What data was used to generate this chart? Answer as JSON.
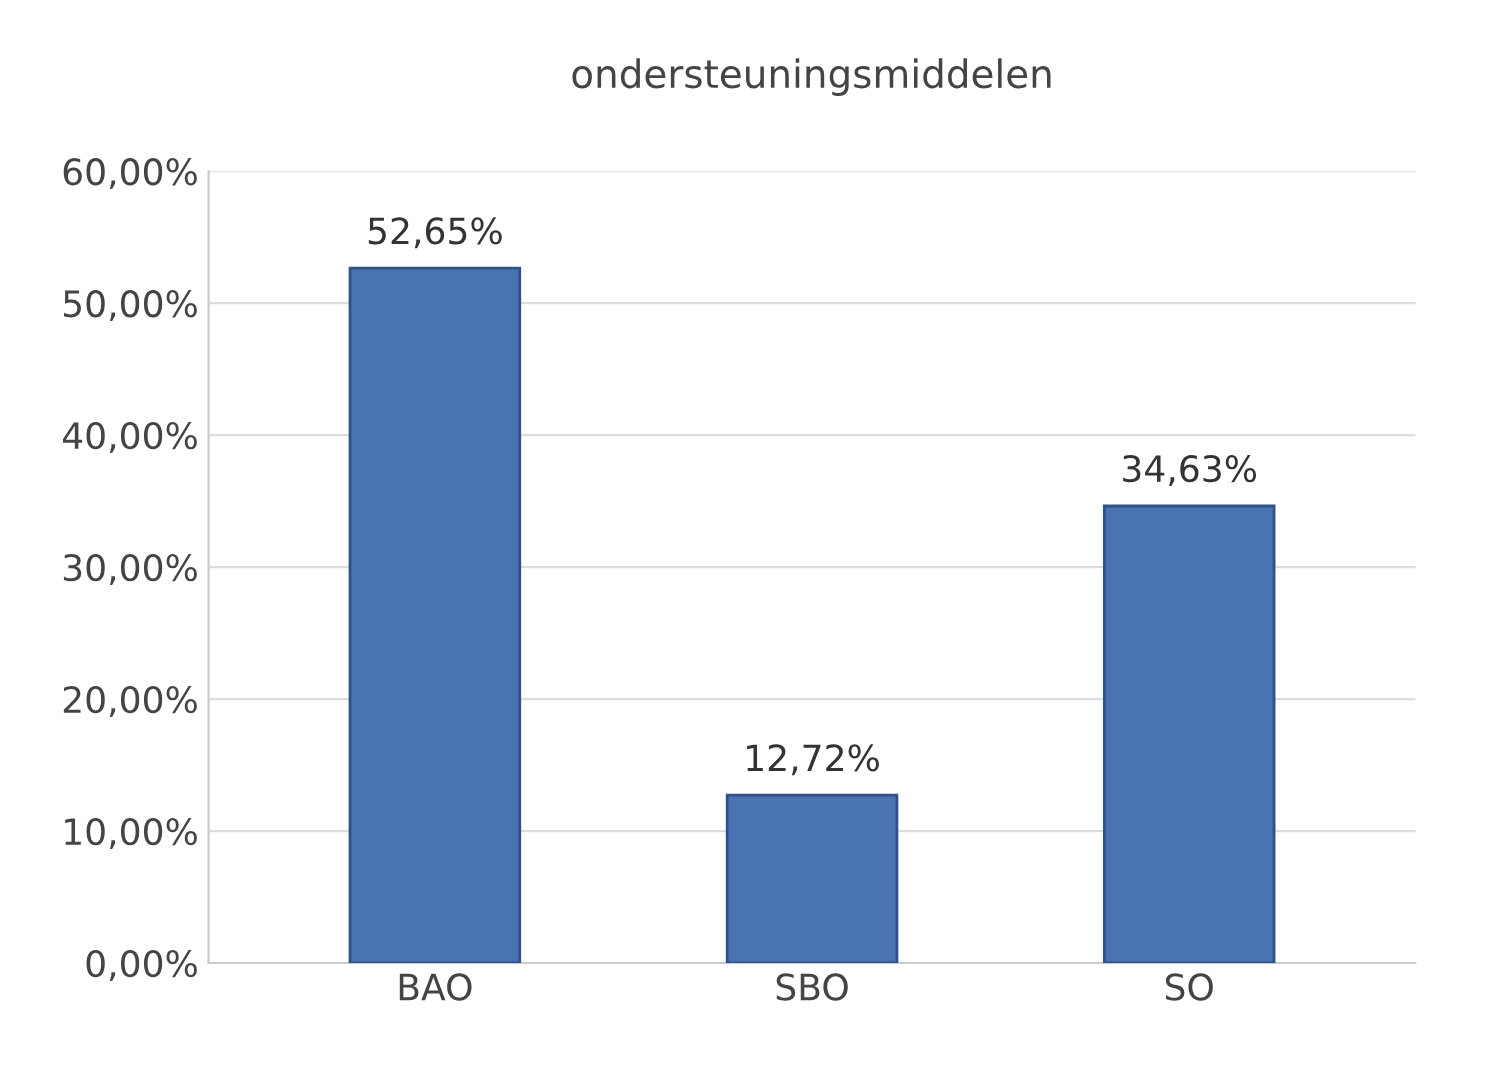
{
  "chart_data": {
    "type": "bar",
    "title": "ondersteuningsmiddelen",
    "categories": [
      "BAO",
      "SBO",
      "SO"
    ],
    "values": [
      52.65,
      12.72,
      34.63
    ],
    "value_labels": [
      "52,65%",
      "12,72%",
      "34,63%"
    ],
    "color": "#4a73b3",
    "ylim": [
      0,
      60
    ],
    "yticks": [
      {
        "value": 0,
        "label": "0,00%"
      },
      {
        "value": 10,
        "label": "10,00%"
      },
      {
        "value": 20,
        "label": "20,00%"
      },
      {
        "value": 30,
        "label": "30,00%"
      },
      {
        "value": 40,
        "label": "40,00%"
      },
      {
        "value": 50,
        "label": "50,00%"
      },
      {
        "value": 60,
        "label": "60,00%"
      }
    ],
    "grid": "y"
  }
}
